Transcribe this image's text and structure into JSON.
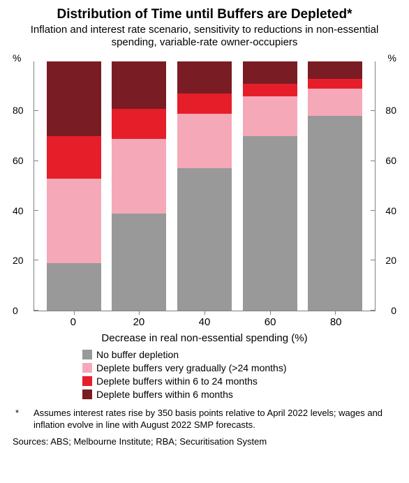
{
  "title": "Distribution of Time until Buffers are Depleted*",
  "subtitle": "Inflation and interest rate scenario, sensitivity to reductions in non-essential spending, variable-rate owner-occupiers",
  "chart": {
    "type": "stacked-bar",
    "y_unit_label": "%",
    "ylim": [
      0,
      100
    ],
    "yticks": [
      0,
      20,
      40,
      60,
      80
    ],
    "categories": [
      "0",
      "20",
      "40",
      "60",
      "80"
    ],
    "x_axis_title": "Decrease in real non-essential spending (%)",
    "series": [
      {
        "key": "no_depletion",
        "label": "No buffer depletion",
        "color": "#999999"
      },
      {
        "key": "very_gradual",
        "label": "Deplete buffers very gradually (>24 months)",
        "color": "#f5a9b8"
      },
      {
        "key": "within_6_24",
        "label": "Deplete buffers within 6 to 24 months",
        "color": "#e61e2a"
      },
      {
        "key": "within_6",
        "label": "Deplete buffers within 6 months",
        "color": "#7a1c23"
      }
    ],
    "stacks": [
      {
        "no_depletion": 19,
        "very_gradual": 34,
        "within_6_24": 17,
        "within_6": 30
      },
      {
        "no_depletion": 39,
        "very_gradual": 30,
        "within_6_24": 12,
        "within_6": 19
      },
      {
        "no_depletion": 57,
        "very_gradual": 22,
        "within_6_24": 8,
        "within_6": 13
      },
      {
        "no_depletion": 70,
        "very_gradual": 16,
        "within_6_24": 5,
        "within_6": 9
      },
      {
        "no_depletion": 78,
        "very_gradual": 11,
        "within_6_24": 4,
        "within_6": 7
      }
    ],
    "background": "#ffffff",
    "axis_color": "#808080",
    "font_sizes": {
      "title": 19,
      "subtitle": 15,
      "axis": 15,
      "legend": 14,
      "footnote": 13
    }
  },
  "footnote": {
    "mark": "*",
    "text": "Assumes interest rates rise by 350 basis points relative to April 2022 levels; wages and inflation evolve in line with August 2022 SMP forecasts."
  },
  "sources_label": "Sources:",
  "sources_text": "ABS; Melbourne Institute; RBA; Securitisation System"
}
